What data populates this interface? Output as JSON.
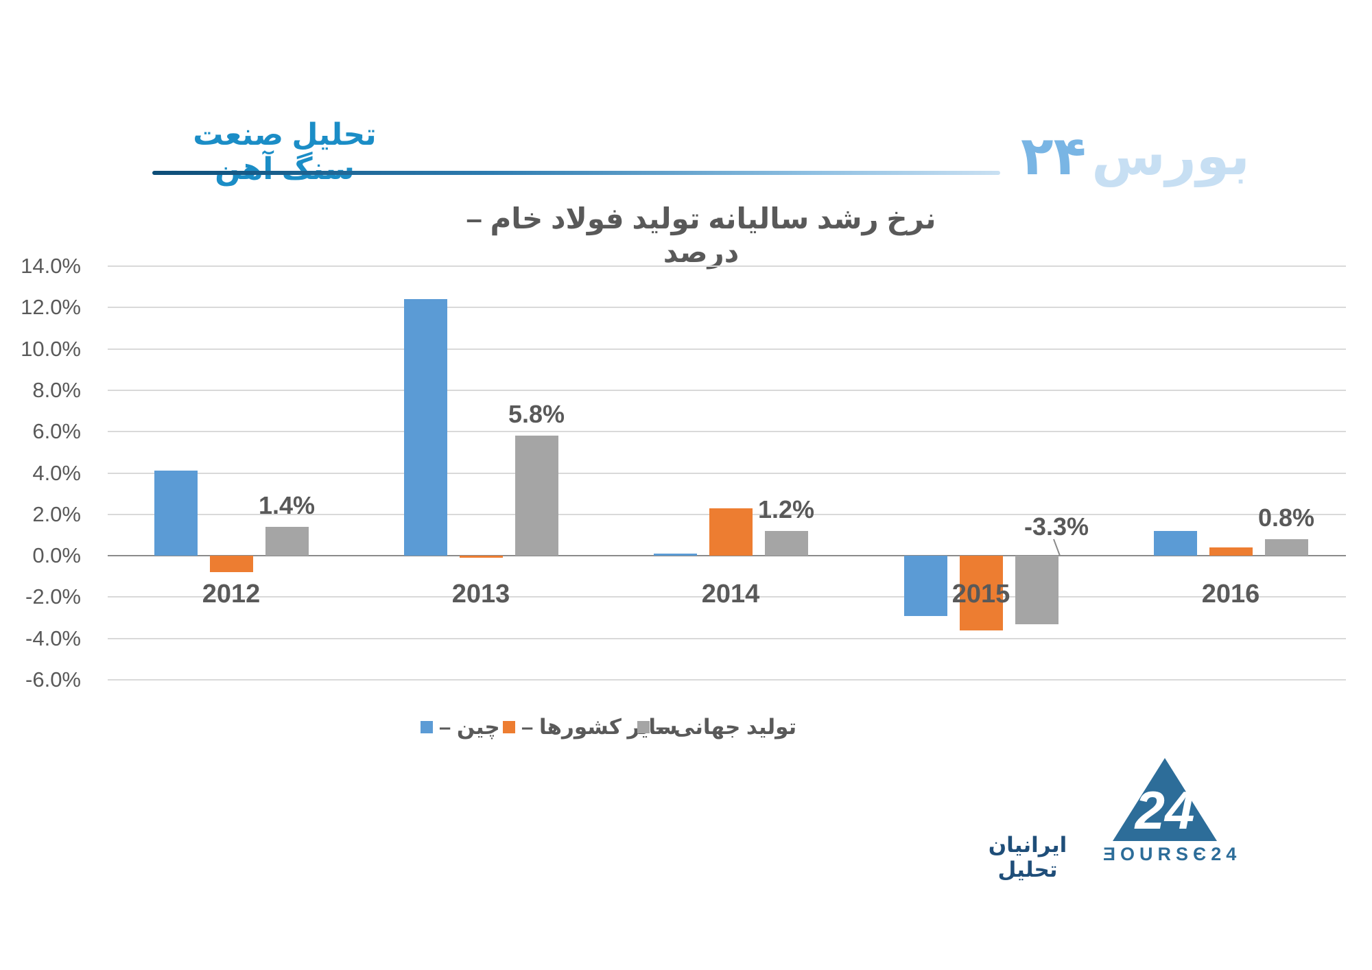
{
  "header": {
    "section_title": "تحلیل صنعت سنگ آهن"
  },
  "watermark": {
    "number": "۲۴",
    "word": "بورس"
  },
  "chart_data": {
    "type": "bar",
    "title": "نرخ رشد سالیانه تولید فولاد خام – درصد",
    "categories": [
      "2012",
      "2013",
      "2014",
      "2015",
      "2016"
    ],
    "series": [
      {
        "name": "چین",
        "color": "#5B9BD5",
        "values": [
          4.1,
          12.4,
          0.1,
          -2.9,
          1.2
        ]
      },
      {
        "name": "سایر کشورها",
        "color": "#ED7D31",
        "values": [
          -0.8,
          -0.1,
          2.3,
          -3.6,
          0.4
        ]
      },
      {
        "name": "تولید جهانی",
        "color": "#A5A5A5",
        "values": [
          1.4,
          5.8,
          1.2,
          -3.3,
          0.8
        ]
      }
    ],
    "data_labels": {
      "series_name": "تولید جهانی",
      "texts": [
        "1.4%",
        "5.8%",
        "1.2%",
        "-3.3%",
        "0.8%"
      ],
      "callout_index": 3
    },
    "y_ticks": [
      "14.0%",
      "12.0%",
      "10.0%",
      "8.0%",
      "6.0%",
      "4.0%",
      "2.0%",
      "0.0%",
      "-2.0%",
      "-4.0%",
      "-6.0%"
    ],
    "ylim": [
      -6,
      14
    ],
    "grid": true,
    "legend_position": "bottom",
    "legend_separator": "–"
  },
  "footer": {
    "analyst_label": "ایرانیان تحلیل",
    "logo_mark_text": "24",
    "logo_word": "ƎOURSЄ24"
  }
}
